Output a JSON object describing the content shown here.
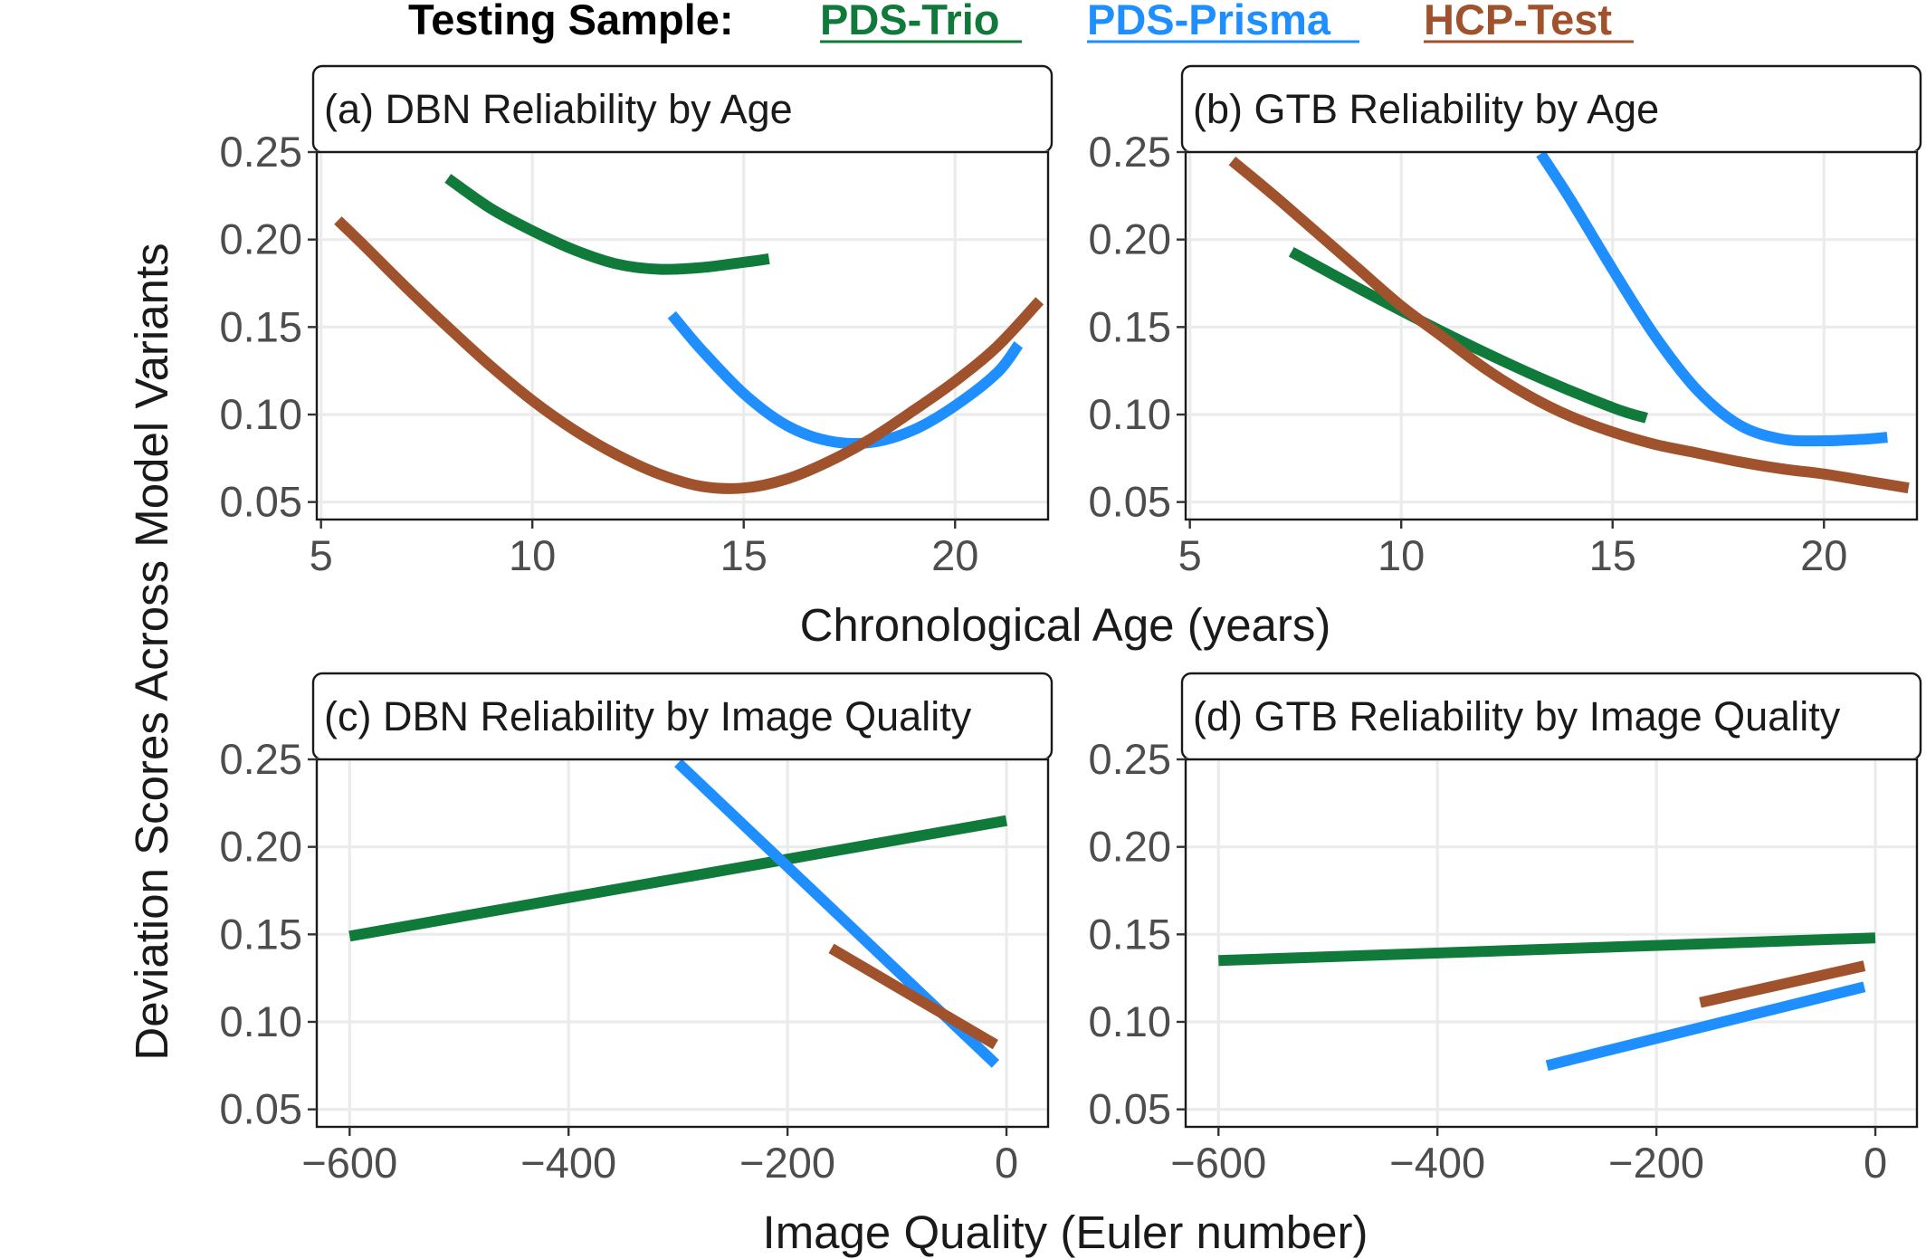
{
  "legend": {
    "title": "Testing Sample:",
    "items": [
      {
        "label": "PDS-Trio",
        "color": "#0f7a3a"
      },
      {
        "label": "PDS-Prisma",
        "color": "#1f8fff"
      },
      {
        "label": "HCP-Test",
        "color": "#a0522d"
      }
    ]
  },
  "y_axis_title": "Deviation Scores Across Model Variants",
  "age_axis_title": "Chronological Age (years)",
  "quality_axis_title": "Image Quality (Euler number)",
  "chart_data": [
    {
      "type": "line",
      "title": "(a) DBN Reliability by Age",
      "xlabel": "Chronological Age (years)",
      "ylabel": "Deviation Scores Across Model Variants",
      "xlim": [
        4.9,
        22.2
      ],
      "ylim": [
        0.04,
        0.25
      ],
      "x_ticks": [
        5,
        10,
        15,
        20
      ],
      "x_tick_labels": [
        "5",
        "10",
        "15",
        "20"
      ],
      "y_ticks": [
        0.05,
        0.1,
        0.15,
        0.2,
        0.25
      ],
      "y_tick_labels": [
        "0.05",
        "0.10",
        "0.15",
        "0.20",
        "0.25"
      ],
      "grid": true,
      "series": [
        {
          "name": "PDS-Trio",
          "color": "#0f7a3a",
          "x": [
            8.0,
            9.0,
            10.0,
            11.0,
            12.0,
            13.0,
            14.0,
            15.0,
            15.6
          ],
          "y": [
            0.235,
            0.218,
            0.205,
            0.194,
            0.186,
            0.183,
            0.184,
            0.187,
            0.189
          ]
        },
        {
          "name": "PDS-Prisma",
          "color": "#1f8fff",
          "x": [
            13.3,
            14.0,
            15.0,
            16.0,
            17.0,
            18.0,
            19.0,
            20.0,
            21.0,
            21.5
          ],
          "y": [
            0.157,
            0.137,
            0.112,
            0.094,
            0.085,
            0.084,
            0.091,
            0.105,
            0.124,
            0.14
          ]
        },
        {
          "name": "HCP-Test",
          "color": "#a0522d",
          "x": [
            5.4,
            6.0,
            7.0,
            8.0,
            9.0,
            10.0,
            11.0,
            12.0,
            13.0,
            14.0,
            15.0,
            16.0,
            17.0,
            18.0,
            19.0,
            20.0,
            21.0,
            22.0
          ],
          "y": [
            0.211,
            0.197,
            0.173,
            0.15,
            0.128,
            0.108,
            0.091,
            0.077,
            0.066,
            0.059,
            0.058,
            0.063,
            0.073,
            0.086,
            0.102,
            0.119,
            0.139,
            0.165
          ]
        }
      ]
    },
    {
      "type": "line",
      "title": "(b) GTB Reliability by Age",
      "xlabel": "Chronological Age (years)",
      "ylabel": "Deviation Scores Across Model Variants",
      "xlim": [
        4.9,
        22.2
      ],
      "ylim": [
        0.04,
        0.25
      ],
      "x_ticks": [
        5,
        10,
        15,
        20
      ],
      "x_tick_labels": [
        "5",
        "10",
        "15",
        "20"
      ],
      "y_ticks": [
        0.05,
        0.1,
        0.15,
        0.2,
        0.25
      ],
      "y_tick_labels": [
        "0.05",
        "0.10",
        "0.15",
        "0.20",
        "0.25"
      ],
      "grid": true,
      "series": [
        {
          "name": "PDS-Trio",
          "color": "#0f7a3a",
          "x": [
            7.4,
            9.0,
            11.0,
            13.0,
            15.0,
            15.8
          ],
          "y": [
            0.193,
            0.172,
            0.147,
            0.124,
            0.104,
            0.098
          ]
        },
        {
          "name": "PDS-Prisma",
          "color": "#1f8fff",
          "x": [
            13.3,
            14.0,
            15.0,
            16.0,
            17.0,
            18.0,
            19.0,
            20.0,
            21.0,
            21.5
          ],
          "y": [
            0.249,
            0.223,
            0.183,
            0.145,
            0.114,
            0.094,
            0.086,
            0.085,
            0.086,
            0.087
          ]
        },
        {
          "name": "HCP-Test",
          "color": "#a0522d",
          "x": [
            6.0,
            7.0,
            8.0,
            9.0,
            10.0,
            11.0,
            12.0,
            13.0,
            14.0,
            15.0,
            16.0,
            17.0,
            18.0,
            19.0,
            20.0,
            21.0,
            22.0
          ],
          "y": [
            0.245,
            0.225,
            0.204,
            0.183,
            0.162,
            0.144,
            0.126,
            0.111,
            0.099,
            0.09,
            0.083,
            0.078,
            0.073,
            0.069,
            0.066,
            0.062,
            0.058
          ]
        }
      ]
    },
    {
      "type": "line",
      "title": "(c) DBN Reliability by Image Quality",
      "xlabel": "Image Quality (Euler number)",
      "ylabel": "Deviation Scores Across Model Variants",
      "xlim": [
        -630,
        38
      ],
      "ylim": [
        0.04,
        0.25
      ],
      "x_ticks": [
        -600,
        -400,
        -200,
        0
      ],
      "x_tick_labels": [
        "−600",
        "−400",
        "−200",
        "0"
      ],
      "y_ticks": [
        0.05,
        0.1,
        0.15,
        0.2,
        0.25
      ],
      "y_tick_labels": [
        "0.05",
        "0.10",
        "0.15",
        "0.20",
        "0.25"
      ],
      "grid": true,
      "series": [
        {
          "name": "PDS-Trio",
          "color": "#0f7a3a",
          "x": [
            -600,
            0
          ],
          "y": [
            0.149,
            0.215
          ]
        },
        {
          "name": "PDS-Prisma",
          "color": "#1f8fff",
          "x": [
            -300,
            -10
          ],
          "y": [
            0.248,
            0.076
          ]
        },
        {
          "name": "HCP-Test",
          "color": "#a0522d",
          "x": [
            -160,
            -10
          ],
          "y": [
            0.142,
            0.087
          ]
        }
      ]
    },
    {
      "type": "line",
      "title": "(d) GTB Reliability by Image Quality",
      "xlabel": "Image Quality (Euler number)",
      "ylabel": "Deviation Scores Across Model Variants",
      "xlim": [
        -630,
        38
      ],
      "ylim": [
        0.04,
        0.25
      ],
      "x_ticks": [
        -600,
        -400,
        -200,
        0
      ],
      "x_tick_labels": [
        "−600",
        "−400",
        "−200",
        "0"
      ],
      "y_ticks": [
        0.05,
        0.1,
        0.15,
        0.2,
        0.25
      ],
      "y_tick_labels": [
        "0.05",
        "0.10",
        "0.15",
        "0.20",
        "0.25"
      ],
      "grid": true,
      "series": [
        {
          "name": "PDS-Trio",
          "color": "#0f7a3a",
          "x": [
            -600,
            0
          ],
          "y": [
            0.135,
            0.148
          ]
        },
        {
          "name": "PDS-Prisma",
          "color": "#1f8fff",
          "x": [
            -300,
            -10
          ],
          "y": [
            0.075,
            0.12
          ]
        },
        {
          "name": "HCP-Test",
          "color": "#a0522d",
          "x": [
            -160,
            -10
          ],
          "y": [
            0.111,
            0.132
          ]
        }
      ]
    }
  ]
}
